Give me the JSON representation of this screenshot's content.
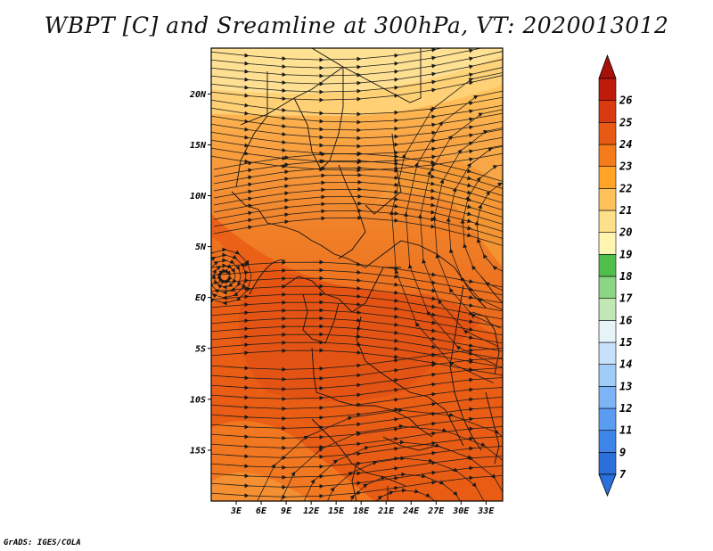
{
  "title": "WBPT [C] and Sreamline at 300hPa, VT: 2020013012",
  "credit": "GrADS: IGES/COLA",
  "map": {
    "lat_labels": [
      "20N",
      "15N",
      "10N",
      "5N",
      "EQ",
      "5S",
      "10S",
      "15S"
    ],
    "lon_labels": [
      "3E",
      "6E",
      "9E",
      "12E",
      "15E",
      "18E",
      "21E",
      "24E",
      "27E",
      "30E",
      "33E"
    ],
    "lat_values": [
      20,
      15,
      10,
      5,
      0,
      -5,
      -10,
      -15
    ],
    "lon_values": [
      3,
      6,
      9,
      12,
      15,
      18,
      21,
      24,
      27,
      30,
      33
    ],
    "lat_range": [
      -20,
      24.5
    ],
    "lon_range": [
      0,
      35
    ]
  },
  "colorbar": {
    "labels": [
      "7",
      "9",
      "11",
      "12",
      "13",
      "14",
      "15",
      "16",
      "17",
      "18",
      "19",
      "20",
      "21",
      "22",
      "23",
      "24",
      "25",
      "26"
    ],
    "colors": [
      "#2a6fdb",
      "#3d85e8",
      "#5a9cf0",
      "#7cb4f5",
      "#a0ccf9",
      "#c6e2fb",
      "#e6f4fa",
      "#bfe8b4",
      "#8bd686",
      "#4fbe4a",
      "#fff4b0",
      "#ffe08a",
      "#ffc15a",
      "#ffa424",
      "#f47c1a",
      "#e85a14",
      "#d93a10",
      "#c01a0c"
    ],
    "lower_tip_color": "#2a6fdb",
    "upper_tip_color": "#a8100a"
  }
}
